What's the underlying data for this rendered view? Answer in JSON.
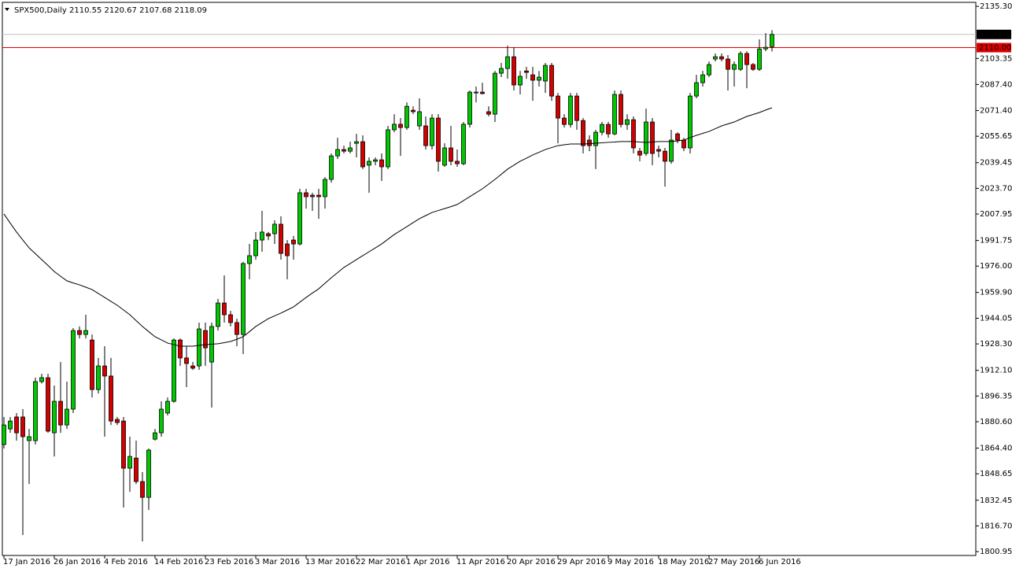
{
  "chart_data": {
    "type": "candlestick",
    "title": "SPX500,Daily",
    "categories": [
      "17 Jan 2016",
      null,
      null,
      null,
      null,
      null,
      null,
      null,
      "26 Jan 2016",
      null,
      null,
      null,
      null,
      null,
      null,
      null,
      "4 Feb 2016",
      null,
      null,
      null,
      null,
      null,
      null,
      null,
      "14 Feb 2016",
      null,
      null,
      null,
      null,
      null,
      null,
      null,
      "23 Feb 2016",
      null,
      null,
      null,
      null,
      null,
      null,
      null,
      "3 Mar 2016",
      null,
      null,
      null,
      null,
      null,
      null,
      null,
      "13 Mar 2016",
      null,
      null,
      null,
      null,
      null,
      null,
      null,
      "22 Mar 2016",
      null,
      null,
      null,
      null,
      null,
      null,
      null,
      "1 Apr 2016",
      null,
      null,
      null,
      null,
      null,
      null,
      null,
      "11 Apr 2016",
      null,
      null,
      null,
      null,
      null,
      null,
      null,
      "20 Apr 2016",
      null,
      null,
      null,
      null,
      null,
      null,
      null,
      "29 Apr 2016",
      null,
      null,
      null,
      null,
      null,
      null,
      null,
      "9 May 2016",
      null,
      null,
      null,
      null,
      null,
      null,
      null,
      "18 May 2016",
      null,
      null,
      null,
      null,
      null,
      null,
      null,
      "27 May 2016",
      null,
      null,
      null,
      null,
      null,
      null,
      null,
      "6 Jun 2016",
      null,
      null
    ],
    "open": [
      1866.6,
      1876.2,
      1883.5,
      1883.5,
      1869.0,
      1869.0,
      1905.2,
      1907.6,
      1873.8,
      1893.1,
      1878.6,
      1888.3,
      1936.5,
      1934.1,
      1930.7,
      1900.3,
      1914.8,
      1908.6,
      1882.0,
      1881.0,
      1852.1,
      1858.3,
      1843.9,
      1834.2,
      1869.9,
      1873.8,
      1885.9,
      1893.1,
      1930.7,
      1919.7,
      1914.8,
      1914.8,
      1936.5,
      1917.2,
      1939.0,
      1953.4,
      1946.2,
      1941.4,
      1934.1,
      1977.6,
      1982.4,
      1992.0,
      1995.9,
      1995.9,
      2001.7,
      1989.6,
      1992.0,
      1989.6,
      2021.0,
      2019.5,
      2019.5,
      2018.6,
      2029.2,
      2043.6,
      2047.5,
      2046.5,
      2051.3,
      2052.3,
      2037.9,
      2040.3,
      2041.2,
      2036.9,
      2059.6,
      2063.0,
      2061.0,
      2071.6,
      2062.0,
      2062.0,
      2049.9,
      2066.8,
      2037.9,
      2048.5,
      2040.3,
      2038.8,
      2063.0,
      2082.2,
      2082.7,
      2070.7,
      2069.2,
      2094.3,
      2097.2,
      2104.4,
      2087.1,
      2095.7,
      2093.3,
      2090.0,
      2089.5,
      2099.1,
      2080.3,
      2066.8,
      2062.9,
      2080.3,
      2065.3,
      2053.3,
      2049.9,
      2058.1,
      2062.9,
      2057.1,
      2081.3,
      2062.9,
      2065.8,
      2046.5,
      2045.1,
      2064.4,
      2047.5,
      2046.5,
      2040.3,
      2057.1,
      2053.3,
      2048.5,
      2080.3,
      2088.5,
      2093.3,
      2103.0,
      2104.4,
      2103.0,
      2096.7,
      2096.7,
      2106.4,
      2099.6,
      2096.7,
      2109.2,
      2110.55
    ],
    "high": [
      1883.5,
      1883.5,
      1885.9,
      1888.3,
      1876.2,
      1907.6,
      1910.0,
      1910.0,
      1902.8,
      1917.2,
      1905.2,
      1938.0,
      1939.0,
      1946.2,
      1934.1,
      1919.7,
      1926.9,
      1919.7,
      1883.5,
      1883.5,
      1871.4,
      1869.0,
      1849.7,
      1864.2,
      1876.2,
      1893.1,
      1895.5,
      1931.7,
      1931.7,
      1926.9,
      1917.2,
      1941.4,
      1941.4,
      1941.4,
      1955.9,
      1970.3,
      1948.6,
      1943.8,
      1978.6,
      1989.6,
      1996.9,
      2009.9,
      1996.9,
      2004.1,
      2006.5,
      1992.0,
      1994.5,
      2023.4,
      2023.4,
      2021.0,
      2023.4,
      2030.6,
      2045.1,
      2054.7,
      2049.9,
      2052.3,
      2057.1,
      2056.2,
      2042.7,
      2042.7,
      2045.1,
      2062.0,
      2069.2,
      2066.8,
      2076.4,
      2074.0,
      2078.9,
      2067.8,
      2069.2,
      2069.2,
      2051.3,
      2062.0,
      2047.5,
      2064.4,
      2083.7,
      2086.1,
      2088.5,
      2074.0,
      2095.7,
      2100.6,
      2111.2,
      2110.2,
      2095.7,
      2098.2,
      2098.2,
      2095.7,
      2100.6,
      2100.6,
      2082.2,
      2069.2,
      2082.2,
      2082.2,
      2066.8,
      2056.2,
      2059.6,
      2064.4,
      2064.4,
      2083.7,
      2083.7,
      2069.2,
      2067.8,
      2048.5,
      2072.6,
      2066.8,
      2049.9,
      2048.5,
      2059.6,
      2058.1,
      2054.7,
      2082.2,
      2093.3,
      2095.7,
      2101.5,
      2106.4,
      2106.4,
      2105.4,
      2101.5,
      2107.8,
      2107.8,
      2100.6,
      2115.0,
      2118.9,
      2120.67
    ],
    "low": [
      1864.2,
      1873.8,
      1869.0,
      1811.1,
      1842.4,
      1866.6,
      1904.0,
      1873.8,
      1859.3,
      1873.8,
      1876.2,
      1885.9,
      1931.7,
      1931.7,
      1895.5,
      1897.9,
      1871.4,
      1878.6,
      1878.6,
      1828.0,
      1837.6,
      1842.4,
      1807.2,
      1826.5,
      1869.0,
      1871.4,
      1884.4,
      1892.2,
      1914.8,
      1901.8,
      1912.4,
      1912.4,
      1914.8,
      1889.3,
      1936.5,
      1941.4,
      1939.0,
      1926.9,
      1922.1,
      1967.9,
      1980.0,
      1984.8,
      1992.0,
      1989.6,
      1980.0,
      1967.9,
      1980.0,
      1988.6,
      2011.3,
      2009.9,
      2005.0,
      2011.3,
      2027.2,
      2041.7,
      2045.1,
      2045.1,
      2042.7,
      2035.5,
      2021.0,
      2037.9,
      2028.2,
      2035.5,
      2058.1,
      2043.6,
      2059.6,
      2069.2,
      2059.6,
      2047.5,
      2047.5,
      2034.0,
      2036.9,
      2037.9,
      2036.9,
      2037.9,
      2061.0,
      2076.4,
      2081.3,
      2067.8,
      2064.4,
      2091.9,
      2090.9,
      2083.7,
      2081.3,
      2090.9,
      2077.4,
      2086.1,
      2082.2,
      2077.4,
      2051.3,
      2061.0,
      2061.0,
      2059.6,
      2045.1,
      2046.5,
      2035.5,
      2056.2,
      2054.7,
      2056.2,
      2061.0,
      2059.6,
      2045.1,
      2040.3,
      2043.6,
      2037.9,
      2042.7,
      2024.8,
      2038.8,
      2051.3,
      2046.5,
      2045.1,
      2078.9,
      2086.1,
      2091.9,
      2101.5,
      2101.5,
      2083.7,
      2086.1,
      2095.7,
      2085.1,
      2095.7,
      2095.7,
      2107.8,
      2107.68
    ],
    "close": [
      1878.6,
      1881.0,
      1873.8,
      1871.4,
      1871.4,
      1905.2,
      1907.6,
      1874.8,
      1893.1,
      1878.6,
      1888.3,
      1936.5,
      1934.1,
      1936.5,
      1900.3,
      1914.8,
      1908.6,
      1881.0,
      1880.1,
      1852.1,
      1859.3,
      1843.9,
      1834.2,
      1863.2,
      1873.8,
      1888.3,
      1893.1,
      1930.7,
      1919.7,
      1916.3,
      1913.4,
      1937.5,
      1925.9,
      1939.0,
      1953.4,
      1946.2,
      1941.4,
      1934.1,
      1977.6,
      1982.4,
      1992.0,
      1996.9,
      1994.5,
      2001.7,
      1983.8,
      1982.4,
      1989.6,
      2021.0,
      2018.6,
      2018.6,
      2018.6,
      2029.2,
      2043.6,
      2047.5,
      2046.5,
      2048.5,
      2052.3,
      2036.9,
      2040.3,
      2041.2,
      2036.9,
      2059.6,
      2063.0,
      2061.0,
      2074.0,
      2070.7,
      2070.7,
      2049.9,
      2066.8,
      2040.3,
      2048.5,
      2040.3,
      2038.8,
      2063.0,
      2082.7,
      2082.7,
      2081.8,
      2069.2,
      2094.3,
      2097.2,
      2104.4,
      2087.1,
      2092.4,
      2094.8,
      2090.0,
      2091.9,
      2099.1,
      2080.3,
      2066.8,
      2062.9,
      2080.3,
      2065.3,
      2049.9,
      2049.9,
      2058.1,
      2062.9,
      2057.1,
      2081.3,
      2062.9,
      2065.8,
      2048.5,
      2044.1,
      2064.4,
      2045.1,
      2046.5,
      2040.3,
      2053.3,
      2053.3,
      2048.5,
      2080.3,
      2088.5,
      2093.3,
      2099.6,
      2104.4,
      2103.0,
      2096.7,
      2099.6,
      2106.4,
      2099.6,
      2096.7,
      2109.2,
      2110.2,
      2118.09
    ],
    "up_color": "#00c800",
    "down_color": "#d40000",
    "overlay": {
      "color": "#000000",
      "values": [
        2008.0,
        2002.4,
        1996.9,
        1992.0,
        1987.2,
        1983.6,
        1980.0,
        1976.4,
        1972.7,
        1969.8,
        1967.0,
        1965.7,
        1964.5,
        1963.1,
        1961.6,
        1959.2,
        1956.8,
        1954.4,
        1952.0,
        1949.1,
        1946.2,
        1942.6,
        1939.0,
        1935.8,
        1932.7,
        1930.8,
        1928.8,
        1927.9,
        1926.9,
        1926.9,
        1926.9,
        1927.4,
        1927.9,
        1928.1,
        1928.4,
        1929.1,
        1929.8,
        1931.2,
        1932.7,
        1935.8,
        1939.0,
        1941.4,
        1943.8,
        1945.5,
        1947.2,
        1949.1,
        1951.0,
        1953.9,
        1956.8,
        1959.5,
        1962.1,
        1965.5,
        1968.9,
        1972.0,
        1975.2,
        1977.6,
        1980.0,
        1982.4,
        1984.8,
        1987.2,
        1989.6,
        1992.5,
        1995.4,
        1997.8,
        2000.2,
        2002.7,
        2005.1,
        2007.0,
        2008.9,
        2010.1,
        2011.3,
        2012.5,
        2013.8,
        2016.2,
        2018.6,
        2021.0,
        2023.4,
        2026.3,
        2029.2,
        2032.3,
        2035.5,
        2037.9,
        2040.3,
        2042.2,
        2044.2,
        2045.8,
        2047.5,
        2048.7,
        2049.9,
        2050.4,
        2050.9,
        2050.9,
        2050.9,
        2051.1,
        2051.4,
        2051.6,
        2051.9,
        2052.1,
        2052.4,
        2052.4,
        2052.4,
        2052.1,
        2051.9,
        2052.1,
        2052.4,
        2052.4,
        2052.4,
        2052.8,
        2053.3,
        2054.8,
        2056.2,
        2057.4,
        2058.6,
        2060.3,
        2062.0,
        2063.2,
        2064.4,
        2066.1,
        2067.8,
        2069.0,
        2070.2,
        2071.7,
        2073.1
      ]
    },
    "hline": {
      "value": 2110,
      "label": "2110.00",
      "color": "#e00000"
    },
    "ylim": [
      1797.6,
      2139.2
    ],
    "yticks": [
      {
        "value": 2135.3,
        "label": "2135.30"
      },
      {
        "value": 2103.35,
        "label": "2103.35"
      },
      {
        "value": 2087.4,
        "label": "2087.40"
      },
      {
        "value": 2071.4,
        "label": "2071.40"
      },
      {
        "value": 2055.65,
        "label": "2055.65"
      },
      {
        "value": 2039.45,
        "label": "2039.45"
      },
      {
        "value": 2023.7,
        "label": "2023.70"
      },
      {
        "value": 2007.95,
        "label": "2007.95"
      },
      {
        "value": 1991.75,
        "label": "1991.75"
      },
      {
        "value": 1976,
        "label": "1976.00"
      },
      {
        "value": 1959.9,
        "label": "1959.90"
      },
      {
        "value": 1944.05,
        "label": "1944.05"
      },
      {
        "value": 1928.3,
        "label": "1928.30"
      },
      {
        "value": 1912.1,
        "label": "1912.10"
      },
      {
        "value": 1896.35,
        "label": "1896.35"
      },
      {
        "value": 1880.6,
        "label": "1880.60"
      },
      {
        "value": 1864.4,
        "label": "1864.40"
      },
      {
        "value": 1848.65,
        "label": "1848.65"
      },
      {
        "value": 1832.45,
        "label": "1832.45"
      },
      {
        "value": 1816.7,
        "label": "1816.70"
      },
      {
        "value": 1800.95,
        "label": "1800.95"
      }
    ],
    "grid": false
  }
}
